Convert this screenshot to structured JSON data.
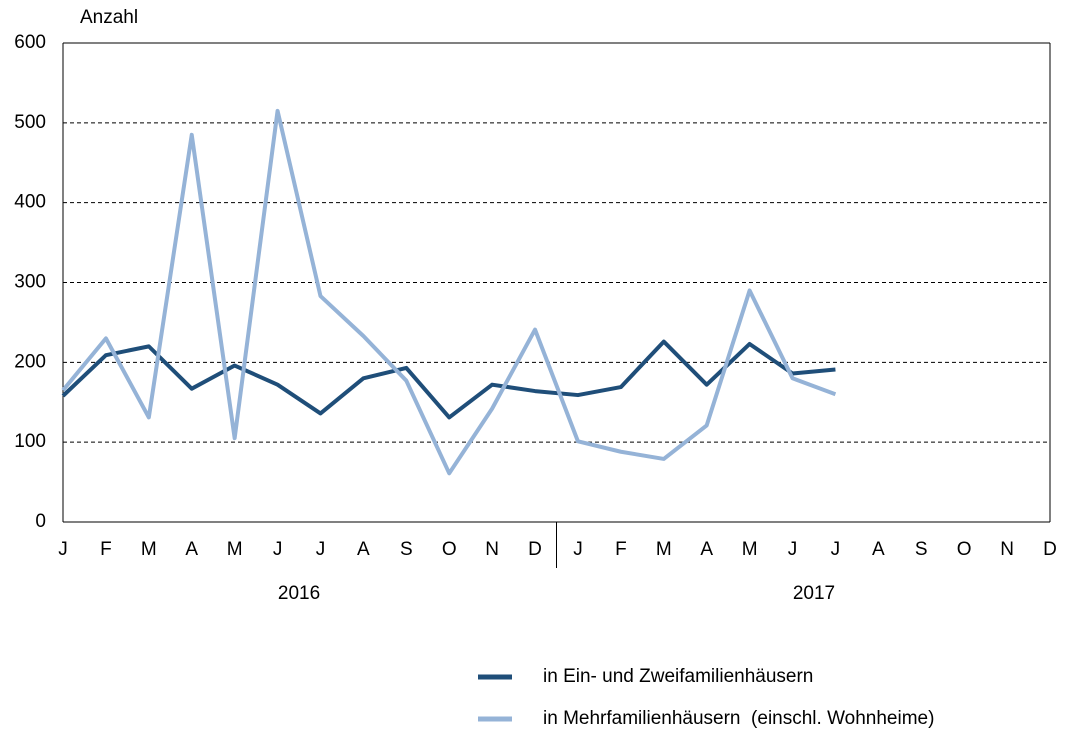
{
  "chart_data": {
    "type": "line",
    "y_label": "Anzahl",
    "categories": [
      "J",
      "F",
      "M",
      "A",
      "M",
      "J",
      "J",
      "A",
      "S",
      "O",
      "N",
      "D",
      "J",
      "F",
      "M",
      "A",
      "M",
      "J",
      "J",
      "A",
      "S",
      "O",
      "N",
      "D"
    ],
    "groups": [
      "2016",
      "2017"
    ],
    "series": [
      {
        "name": "in Ein- und Zweifamilienhäusern",
        "color": "#1f4e79",
        "values": [
          158,
          209,
          220,
          167,
          196,
          172,
          136,
          180,
          193,
          131,
          172,
          164,
          159,
          169,
          226,
          172,
          223,
          186,
          191,
          null,
          null,
          null,
          null,
          null
        ]
      },
      {
        "name": "in Mehrfamilienhäusern  (einschl. Wohnheime)",
        "color": "#95b3d7",
        "values": [
          165,
          230,
          131,
          485,
          105,
          515,
          283,
          233,
          177,
          61,
          142,
          241,
          101,
          88,
          79,
          121,
          290,
          180,
          160,
          null,
          null,
          null,
          null,
          null
        ]
      }
    ],
    "ylim": [
      0,
      600
    ],
    "yticks": [
      0,
      100,
      200,
      300,
      400,
      500,
      600
    ],
    "grid": true
  }
}
